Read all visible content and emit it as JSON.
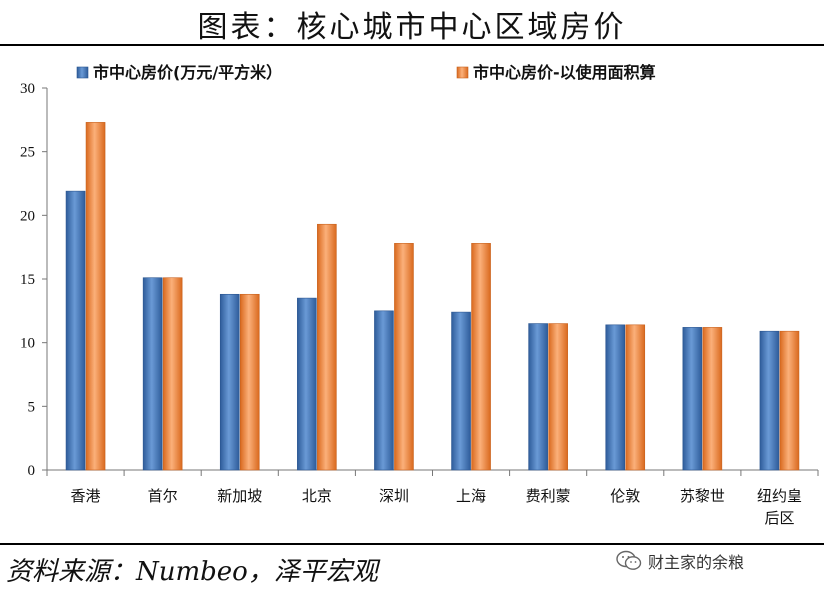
{
  "title": "图表：核心城市中心区域房价",
  "source": "资料来源：Numbeo，泽平宏观",
  "watermark": "财主家的余粮",
  "chart_data": {
    "type": "bar",
    "categories": [
      "香港",
      "首尔",
      "新加坡",
      "北京",
      "深圳",
      "上海",
      "费利蒙",
      "伦敦",
      "苏黎世",
      "纽约皇后区"
    ],
    "category_lines": [
      [
        "香港"
      ],
      [
        "首尔"
      ],
      [
        "新加坡"
      ],
      [
        "北京"
      ],
      [
        "深圳"
      ],
      [
        "上海"
      ],
      [
        "费利蒙"
      ],
      [
        "伦敦"
      ],
      [
        "苏黎世"
      ],
      [
        "纽约皇",
        "后区"
      ]
    ],
    "series": [
      {
        "name": "市中心房价(万元/平方米）",
        "color": "#4F81BD",
        "values": [
          21.9,
          15.1,
          13.8,
          13.5,
          12.5,
          12.4,
          11.5,
          11.4,
          11.2,
          10.9
        ]
      },
      {
        "name": "市中心房价-以使用面积算",
        "color": "#F79646",
        "values": [
          27.3,
          15.1,
          13.8,
          19.3,
          17.8,
          17.8,
          11.5,
          11.4,
          11.2,
          10.9
        ]
      }
    ],
    "ylim": [
      0,
      30
    ],
    "yticks": [
      0,
      5,
      10,
      15,
      20,
      25,
      30
    ],
    "xlabel": "",
    "ylabel": "",
    "grid": false,
    "legend": "top"
  }
}
